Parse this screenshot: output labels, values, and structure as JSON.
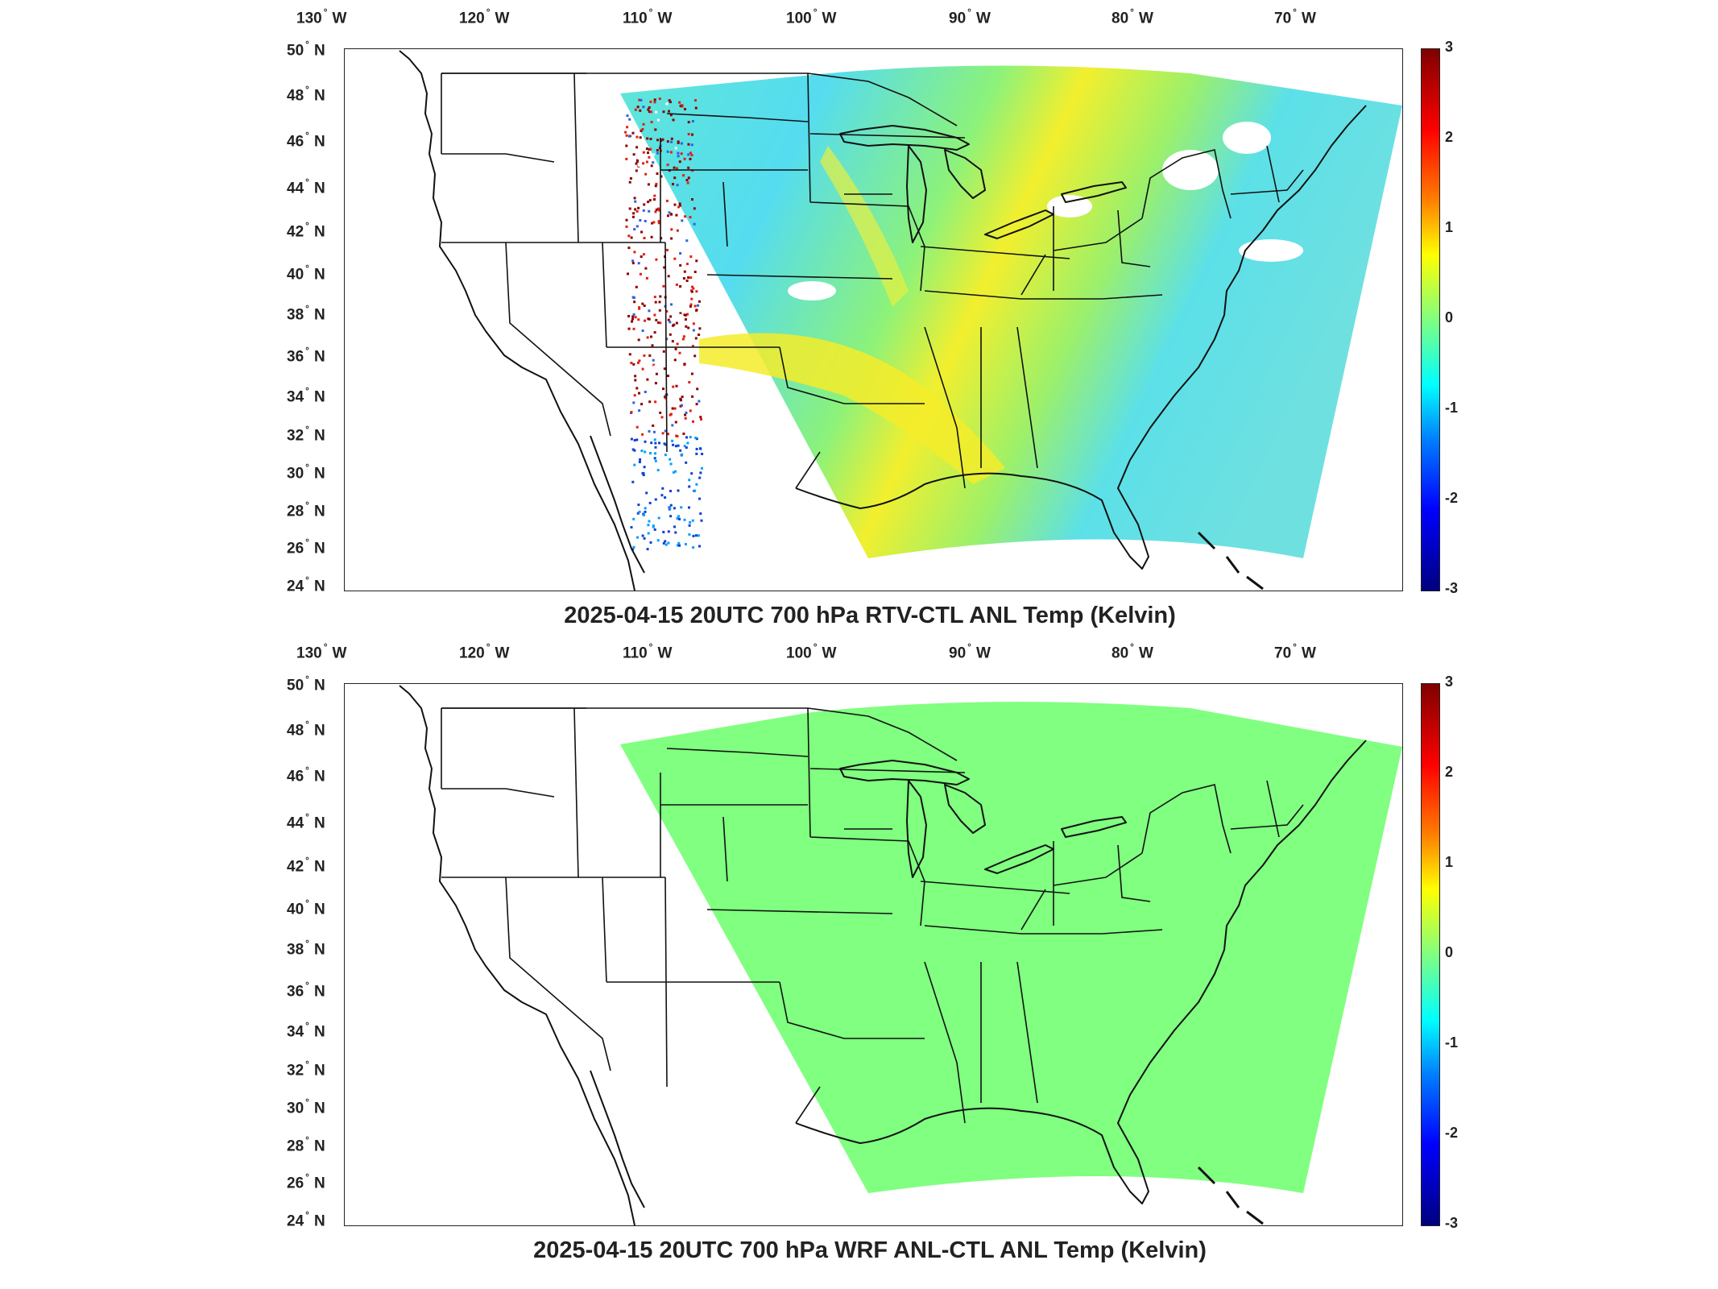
{
  "panels": [
    {
      "title": "2025-04-15 20UTC 700 hPa RTV-CTL ANL Temp (Kelvin)",
      "lon_ticks": [
        {
          "deg": "130",
          "hemi": "W"
        },
        {
          "deg": "120",
          "hemi": "W"
        },
        {
          "deg": "110",
          "hemi": "W"
        },
        {
          "deg": "100",
          "hemi": "W"
        },
        {
          "deg": "90",
          "hemi": "W"
        },
        {
          "deg": "80",
          "hemi": "W"
        },
        {
          "deg": "70",
          "hemi": "W"
        }
      ],
      "lat_ticks": [
        {
          "deg": "50",
          "hemi": "N"
        },
        {
          "deg": "48",
          "hemi": "N"
        },
        {
          "deg": "46",
          "hemi": "N"
        },
        {
          "deg": "44",
          "hemi": "N"
        },
        {
          "deg": "42",
          "hemi": "N"
        },
        {
          "deg": "40",
          "hemi": "N"
        },
        {
          "deg": "38",
          "hemi": "N"
        },
        {
          "deg": "36",
          "hemi": "N"
        },
        {
          "deg": "34",
          "hemi": "N"
        },
        {
          "deg": "32",
          "hemi": "N"
        },
        {
          "deg": "30",
          "hemi": "N"
        },
        {
          "deg": "28",
          "hemi": "N"
        },
        {
          "deg": "26",
          "hemi": "N"
        },
        {
          "deg": "24",
          "hemi": "N"
        }
      ],
      "colorbar": {
        "ticks": [
          "3",
          "2",
          "1",
          "0",
          "-1",
          "-2",
          "-3"
        ],
        "range": [
          -3,
          3
        ],
        "colormap": "jet"
      },
      "field": {
        "dominant_value_range": [
          -0.6,
          0.9
        ],
        "fill": "mixed cyan / yellow anomaly",
        "west_edge": "noisy red and blue speckles"
      }
    },
    {
      "title": "2025-04-15 20UTC 700 hPa WRF ANL-CTL ANL Temp (Kelvin)",
      "lon_ticks": [
        {
          "deg": "130",
          "hemi": "W"
        },
        {
          "deg": "120",
          "hemi": "W"
        },
        {
          "deg": "110",
          "hemi": "W"
        },
        {
          "deg": "100",
          "hemi": "W"
        },
        {
          "deg": "90",
          "hemi": "W"
        },
        {
          "deg": "80",
          "hemi": "W"
        },
        {
          "deg": "70",
          "hemi": "W"
        }
      ],
      "lat_ticks": [
        {
          "deg": "50",
          "hemi": "N"
        },
        {
          "deg": "48",
          "hemi": "N"
        },
        {
          "deg": "46",
          "hemi": "N"
        },
        {
          "deg": "44",
          "hemi": "N"
        },
        {
          "deg": "42",
          "hemi": "N"
        },
        {
          "deg": "40",
          "hemi": "N"
        },
        {
          "deg": "38",
          "hemi": "N"
        },
        {
          "deg": "36",
          "hemi": "N"
        },
        {
          "deg": "34",
          "hemi": "N"
        },
        {
          "deg": "32",
          "hemi": "N"
        },
        {
          "deg": "30",
          "hemi": "N"
        },
        {
          "deg": "28",
          "hemi": "N"
        },
        {
          "deg": "26",
          "hemi": "N"
        },
        {
          "deg": "24",
          "hemi": "N"
        }
      ],
      "colorbar": {
        "ticks": [
          "3",
          "2",
          "1",
          "0",
          "-1",
          "-2",
          "-3"
        ],
        "range": [
          -3,
          3
        ],
        "colormap": "jet"
      },
      "field": {
        "dominant_value_range": [
          0,
          0
        ],
        "fill": "uniform light green (zero difference)"
      }
    }
  ],
  "colors": {
    "zero": "#80ff80",
    "cyan": "#40e0e8",
    "yellow": "#f0f030",
    "border": "#111111"
  }
}
